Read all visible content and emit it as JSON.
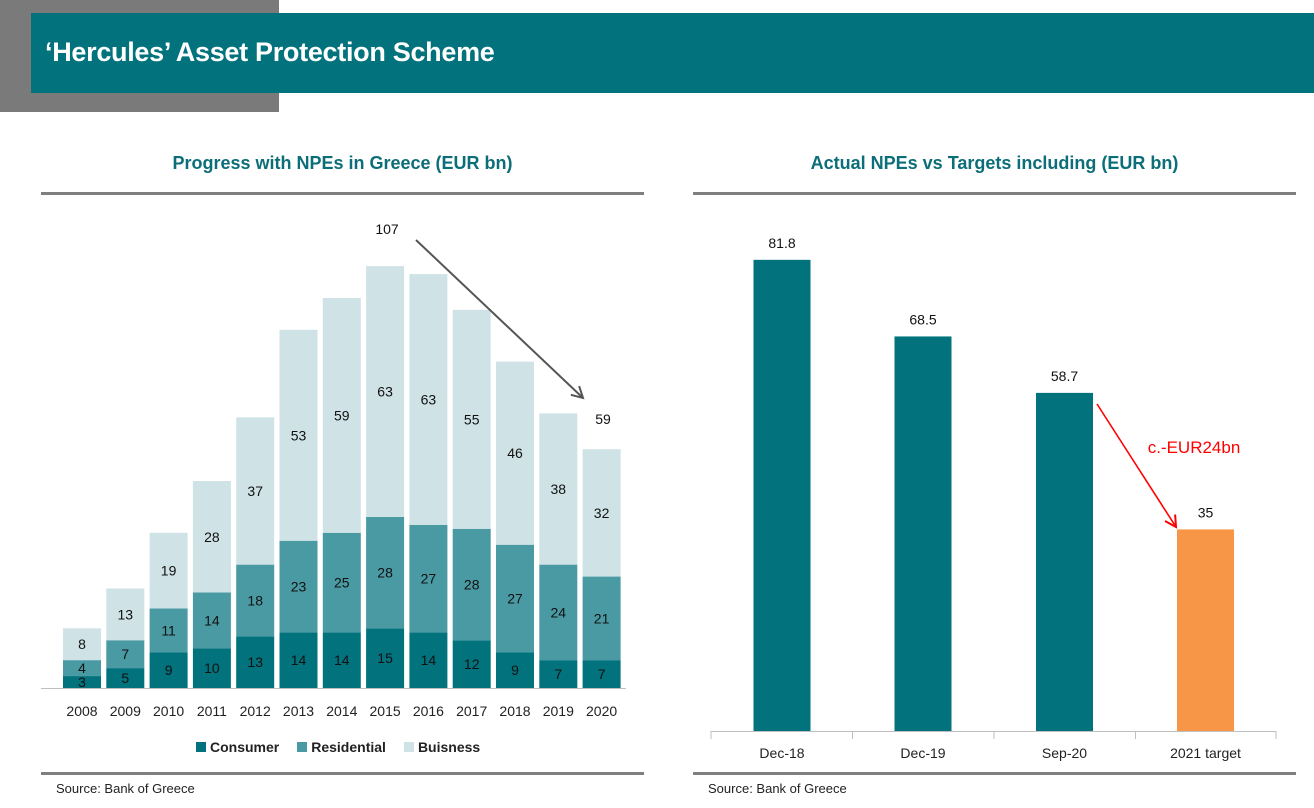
{
  "header": {
    "title": "‘Hercules’ Asset Protection Scheme",
    "banner_color": "#02727d"
  },
  "chart_data": [
    {
      "type": "bar",
      "stacked": true,
      "title": "Progress with NPEs in Greece (EUR bn)",
      "xlabel": "",
      "ylabel": "",
      "categories": [
        "2008",
        "2009",
        "2010",
        "2011",
        "2012",
        "2013",
        "2014",
        "2015",
        "2016",
        "2017",
        "2018",
        "2019",
        "2020"
      ],
      "series": [
        {
          "name": "Consumer",
          "color": "#02727d",
          "values": [
            3,
            5,
            9,
            10,
            13,
            14,
            14,
            15,
            14,
            12,
            9,
            7,
            7
          ]
        },
        {
          "name": "Residential",
          "color": "#4a9aa3",
          "values": [
            4,
            7,
            11,
            14,
            18,
            23,
            25,
            28,
            27,
            28,
            27,
            24,
            21
          ]
        },
        {
          "name": "Buisness",
          "color": "#cfe3e7",
          "values": [
            8,
            13,
            19,
            28,
            37,
            53,
            59,
            63,
            63,
            55,
            46,
            38,
            32
          ]
        }
      ],
      "annotations": [
        {
          "text": "107",
          "note": "peak total label above 2015"
        },
        {
          "text": "59",
          "note": "2020 total label"
        },
        {
          "type": "arrow",
          "from": "2015 peak",
          "to": "2020",
          "color": "#555555"
        }
      ],
      "ylim": [
        0,
        110
      ],
      "grid": false,
      "legend": "bottom",
      "source": "Source: Bank of Greece"
    },
    {
      "type": "bar",
      "title": "Actual NPEs vs Targets including (EUR bn)",
      "xlabel": "",
      "ylabel": "",
      "categories": [
        "Dec-18",
        "Dec-19",
        "Sep-20",
        "2021 target"
      ],
      "values": [
        81.8,
        68.5,
        58.7,
        35
      ],
      "value_labels": [
        "81.8",
        "68.5",
        "58.7",
        "35"
      ],
      "colors": [
        "#02727d",
        "#02727d",
        "#02727d",
        "#f79646"
      ],
      "annotations": [
        {
          "type": "arrow",
          "from": "Sep-20",
          "to": "2021 target",
          "color": "#ff0000",
          "text": "c.-EUR24bn"
        }
      ],
      "ylim": [
        0,
        85
      ],
      "grid": false,
      "legend": "none",
      "source": "Source: Bank of Greece"
    }
  ]
}
